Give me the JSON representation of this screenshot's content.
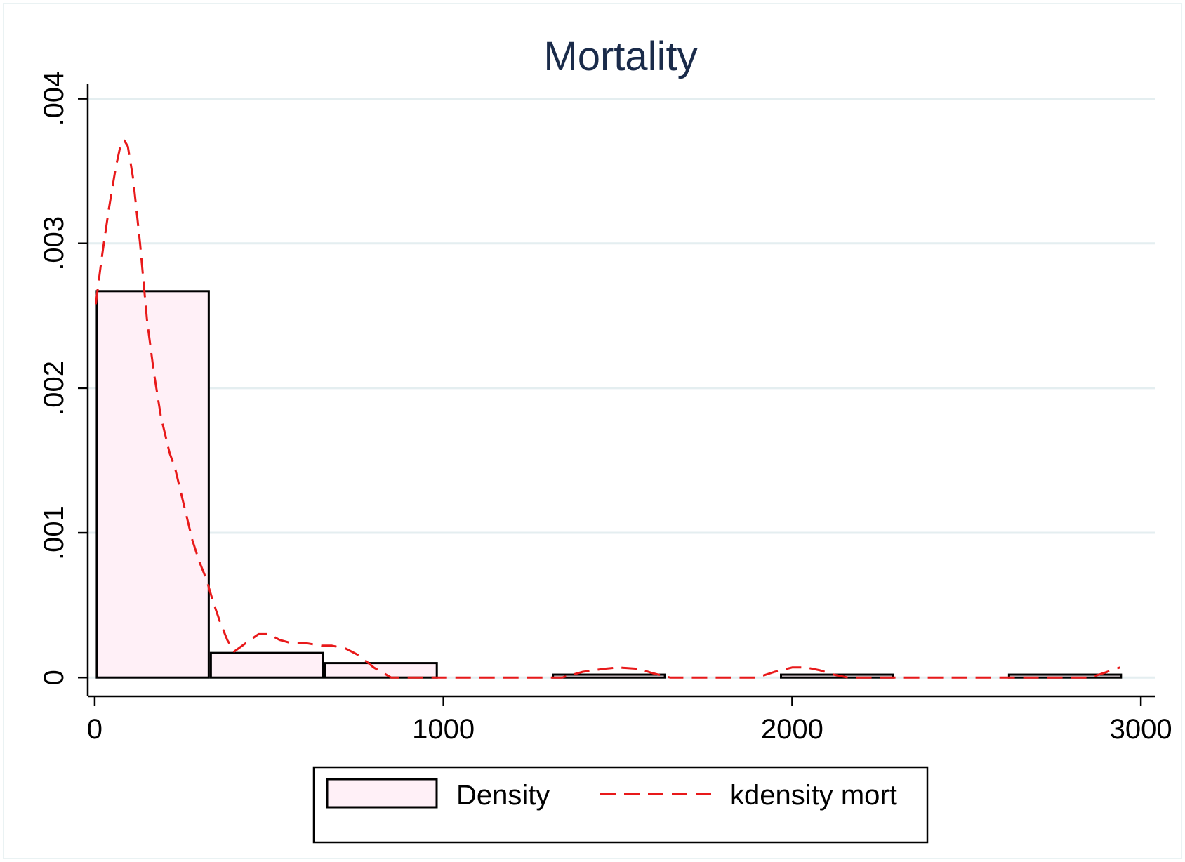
{
  "chart_data": {
    "type": "histogram",
    "title": "Mortality",
    "xlabel": "",
    "ylabel": "",
    "xlim": [
      -20,
      3040
    ],
    "ylim": [
      -0.00013,
      0.0041
    ],
    "x_ticks": [
      0,
      1000,
      2000,
      3000
    ],
    "x_tick_labels": [
      "0",
      "1000",
      "2000",
      "3000"
    ],
    "y_ticks": [
      0,
      0.001,
      0.002,
      0.003,
      0.004
    ],
    "y_tick_labels": [
      "0",
      ".001",
      ".002",
      ".003",
      ".004"
    ],
    "grid": true,
    "legend_position": "bottom",
    "histogram": {
      "name": "Density",
      "fill": "#fff0f7",
      "stroke": "#000000",
      "bins": [
        {
          "x0": 3,
          "x1": 330,
          "value": 0.00267
        },
        {
          "x0": 330,
          "x1": 657,
          "value": 0.00017
        },
        {
          "x0": 657,
          "x1": 984,
          "value": 0.0001
        },
        {
          "x0": 984,
          "x1": 1311,
          "value": 0
        },
        {
          "x0": 1311,
          "x1": 1638,
          "value": 2e-05
        },
        {
          "x0": 1638,
          "x1": 1965,
          "value": 0
        },
        {
          "x0": 1965,
          "x1": 2292,
          "value": 2e-05
        },
        {
          "x0": 2292,
          "x1": 2619,
          "value": 0
        },
        {
          "x0": 2619,
          "x1": 2946,
          "value": 2e-05
        }
      ]
    },
    "kdensity": {
      "name": "kdensity mort",
      "color": "#e8191a",
      "x": [
        3,
        20,
        40,
        60,
        75,
        85,
        95,
        110,
        130,
        150,
        170,
        190,
        210,
        215,
        230,
        250,
        280,
        300,
        320,
        340,
        360,
        380,
        400,
        440,
        470,
        500,
        530,
        560,
        600,
        650,
        680,
        720,
        760,
        800,
        850,
        1000,
        1200,
        1340,
        1400,
        1460,
        1500,
        1560,
        1600,
        1650,
        1800,
        1900,
        1950,
        2000,
        2040,
        2080,
        2120,
        2160,
        2300,
        2600,
        2850,
        2880,
        2940
      ],
      "y": [
        0.00258,
        0.0029,
        0.00323,
        0.00352,
        0.00369,
        0.00371,
        0.00367,
        0.00345,
        0.003,
        0.00247,
        0.0021,
        0.0018,
        0.0016,
        0.00155,
        0.00145,
        0.00125,
        0.00095,
        0.0008,
        0.00068,
        0.00052,
        0.00038,
        0.00026,
        0.00018,
        0.00025,
        0.0003,
        0.0003,
        0.00026,
        0.00024,
        0.00024,
        0.00022,
        0.00022,
        0.0002,
        0.00015,
        7e-05,
        0.0,
        0.0,
        0.0,
        0.0,
        4e-05,
        6e-05,
        7e-05,
        6e-05,
        3e-05,
        0.0,
        0.0,
        0.0,
        4e-05,
        7e-05,
        7e-05,
        5e-05,
        2e-05,
        0.0,
        0.0,
        0.0,
        0.0,
        2e-05,
        7e-05
      ]
    }
  }
}
